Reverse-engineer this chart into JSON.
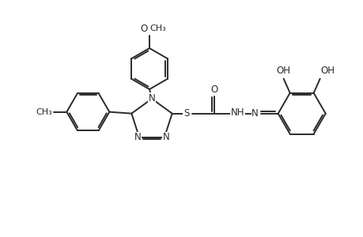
{
  "bg_color": "#ffffff",
  "line_color": "#2a2a2a",
  "line_width": 1.4,
  "font_size": 8.5,
  "fig_width": 4.6,
  "fig_height": 3.0,
  "dpi": 100,
  "methoxy_label": "O",
  "methoxy_ch3": "CH₃",
  "methyl_label": "CH₃",
  "s_label": "S",
  "o_label": "O",
  "nh_label": "NH",
  "n_label": "N",
  "oh1_label": "OH",
  "oh2_label": "OH"
}
